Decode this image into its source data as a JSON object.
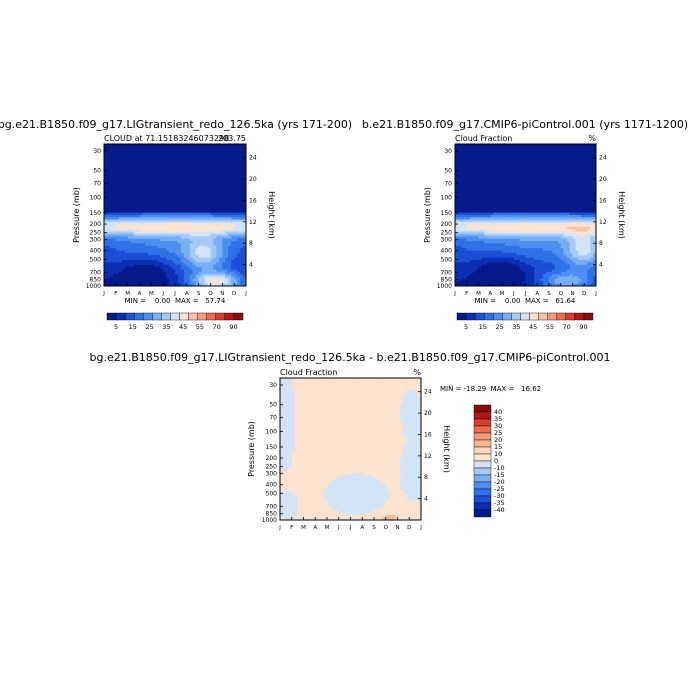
{
  "figure_title": "",
  "colors": {
    "plot_frame": "#000000",
    "shared_levels": [
      5,
      15,
      25,
      35,
      45,
      55,
      70,
      90
    ],
    "shared_palette": [
      "#061a8c",
      "#0a2fb5",
      "#1a4fd6",
      "#2f72e8",
      "#4d8ff0",
      "#78aef2",
      "#a6c9f5",
      "#d4e4f7",
      "#fbe3cf",
      "#f7c2a6",
      "#f39a7a",
      "#ec6c4f",
      "#d93b2c",
      "#b4141a",
      "#8a0c10"
    ],
    "diff_levels": [
      -40,
      -35,
      -30,
      -25,
      -20,
      -15,
      -10,
      0,
      10,
      15,
      20,
      25,
      30,
      35,
      40
    ],
    "diff_palette": [
      "#061a8c",
      "#0a2fb5",
      "#1a4fd6",
      "#2f72e8",
      "#4d8ff0",
      "#78aef2",
      "#a6c9f5",
      "#d4e4f7",
      "#fbe3cf",
      "#fcd6c0",
      "#f7b594",
      "#f39a7a",
      "#ec6c4f",
      "#d93b2c",
      "#b4141a",
      "#8a0c10"
    ]
  },
  "chart_data": [
    {
      "type": "heatmap",
      "title": "bg.e21.B1850.f09_g17.LIGtransient_redo_126.5ka (yrs 171-200)",
      "subtitle_left": "CLOUD at 71.15183246073298",
      "subtitle_right": "203.75",
      "xlabel": "",
      "ylabel": "Pressure (mb)",
      "y2label": "Height (km)",
      "x_ticks": [
        "J",
        "F",
        "M",
        "A",
        "M",
        "J",
        "J",
        "A",
        "S",
        "O",
        "N",
        "D",
        "J"
      ],
      "y_ticks": [
        "30",
        "50",
        "70",
        "100",
        "150",
        "200",
        "250",
        "300",
        "400",
        "500",
        "700",
        "850",
        "1000"
      ],
      "y2_ticks": [
        "24",
        "20",
        "16",
        "12",
        "8",
        "4"
      ],
      "minmax_text": "MIN =    0.00  MAX =   57.74",
      "colorbar_labels": [
        "5",
        "15",
        "25",
        "35",
        "45",
        "55",
        "70",
        "90"
      ],
      "grid": false
    },
    {
      "type": "heatmap",
      "title": "b.e21.B1850.f09_g17.CMIP6-piControl.001 (yrs 1171-1200)",
      "subtitle_left": "Cloud Fraction",
      "subtitle_right": "%",
      "xlabel": "",
      "ylabel": "Pressure (mb)",
      "y2label": "Height (km)",
      "x_ticks": [
        "J",
        "F",
        "M",
        "A",
        "M",
        "J",
        "J",
        "A",
        "S",
        "O",
        "N",
        "D",
        "J"
      ],
      "y_ticks": [
        "30",
        "50",
        "70",
        "100",
        "150",
        "200",
        "250",
        "300",
        "400",
        "500",
        "700",
        "850",
        "1000"
      ],
      "y2_ticks": [
        "24",
        "20",
        "16",
        "12",
        "8",
        "4"
      ],
      "minmax_text": "MIN =    0.00  MAX =   61.64",
      "colorbar_labels": [
        "5",
        "15",
        "25",
        "35",
        "45",
        "55",
        "70",
        "90"
      ],
      "grid": false
    },
    {
      "type": "heatmap",
      "title": "bg.e21.B1850.f09_g17.LIGtransient_redo_126.5ka  -  b.e21.B1850.f09_g17.CMIP6-piControl.001",
      "subtitle_left": "Cloud Fraction",
      "subtitle_right": "%",
      "xlabel": "",
      "ylabel": "Pressure (mb)",
      "y2label": "Height (km)",
      "x_ticks": [
        "J",
        "F",
        "M",
        "A",
        "M",
        "J",
        "J",
        "A",
        "S",
        "O",
        "N",
        "D",
        "J"
      ],
      "y_ticks": [
        "30",
        "50",
        "70",
        "100",
        "150",
        "200",
        "250",
        "300",
        "400",
        "500",
        "700",
        "850",
        "1000"
      ],
      "y2_ticks": [
        "24",
        "20",
        "16",
        "12",
        "8",
        "4"
      ],
      "minmax_text": "MIN = -18.29  MAX =   16.62",
      "colorbar_labels": [
        "40",
        "35",
        "30",
        "25",
        "20",
        "15",
        "10",
        "0",
        "-10",
        "-15",
        "-20",
        "-25",
        "-30",
        "-35",
        "-40"
      ],
      "grid": false
    }
  ]
}
